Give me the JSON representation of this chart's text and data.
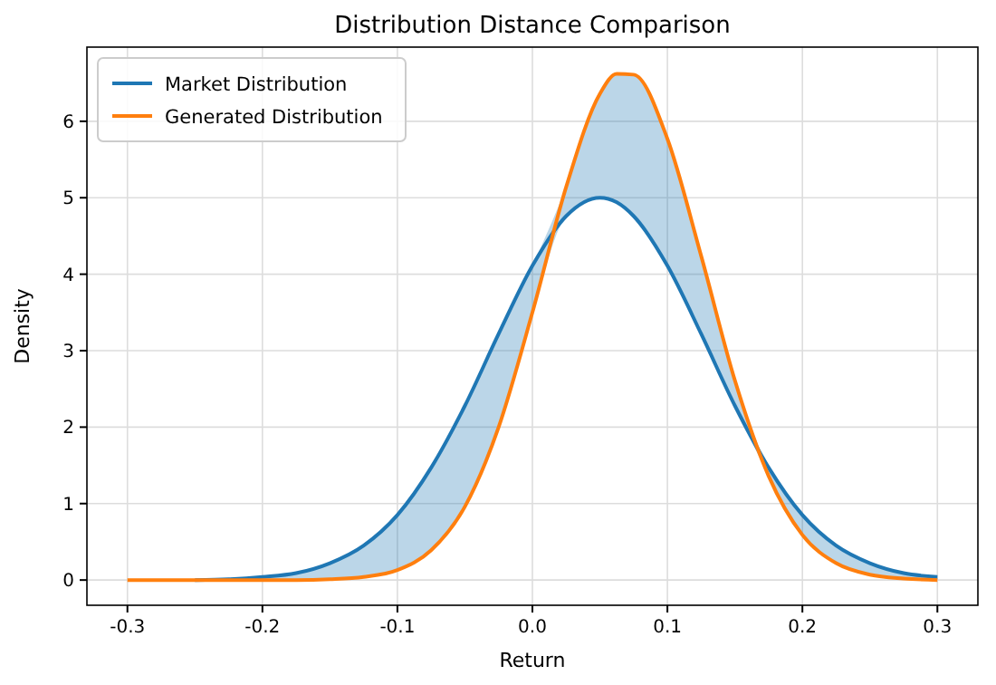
{
  "chart_data": {
    "type": "line",
    "title": "Distribution Distance Comparison",
    "xlabel": "Return",
    "ylabel": "Density",
    "x": [
      -0.3,
      -0.275,
      -0.25,
      -0.225,
      -0.2,
      -0.175,
      -0.15,
      -0.125,
      -0.1,
      -0.075,
      -0.05,
      -0.025,
      0,
      0.025,
      0.05,
      0.0625,
      0.075,
      0.1,
      0.125,
      0.15,
      0.175,
      0.2,
      0.225,
      0.25,
      0.275,
      0.3
    ],
    "series": [
      {
        "name": "Market Distribution",
        "color": "#1f77b4",
        "values": [
          null,
          null,
          0,
          0.01,
          0.04,
          0.09,
          0.22,
          0.45,
          0.85,
          1.47,
          2.28,
          3.22,
          4.11,
          4.76,
          5,
          4.94,
          4.76,
          4.11,
          3.22,
          2.28,
          1.47,
          0.85,
          0.45,
          0.22,
          0.09,
          0.04
        ],
        "lower": [
          0,
          0,
          0,
          0,
          0,
          0,
          0.01,
          0.04,
          0.13,
          0.39,
          0.96,
          2,
          3.5,
          4.76,
          5,
          4.94,
          4.76,
          4.11,
          3.22,
          2.28,
          1.36,
          0.59,
          0.22,
          0.07,
          0.02,
          0
        ],
        "upper": [
          0,
          0,
          0,
          0.01,
          0.04,
          0.09,
          0.22,
          0.45,
          0.85,
          1.47,
          2.28,
          3.22,
          4.11,
          5.14,
          6.36,
          6.62,
          6.61,
          5.77,
          4.24,
          2.61,
          1.47,
          0.85,
          0.45,
          0.22,
          0.09,
          0.04
        ]
      },
      {
        "name": "Generated Distribution",
        "color": "#ff7f0e",
        "values": [
          0,
          0,
          0,
          0,
          0,
          0,
          0.01,
          0.04,
          0.13,
          0.39,
          0.96,
          2,
          3.5,
          5.14,
          6.36,
          6.62,
          6.61,
          5.77,
          4.24,
          2.61,
          1.36,
          0.59,
          0.22,
          0.07,
          0.02,
          0
        ]
      }
    ],
    "xlim": [
      -0.33,
      0.33
    ],
    "ylim": [
      -0.33,
      6.97
    ],
    "xticks": [
      -0.3,
      -0.2,
      -0.1,
      {
        "value": 0,
        "label": "0.0"
      },
      0.1,
      0.2,
      0.3
    ],
    "yticks": [
      0,
      1,
      2,
      3,
      4,
      5,
      6
    ],
    "grid": true,
    "legend": "top left",
    "marker": "none",
    "line_style": "solid"
  }
}
